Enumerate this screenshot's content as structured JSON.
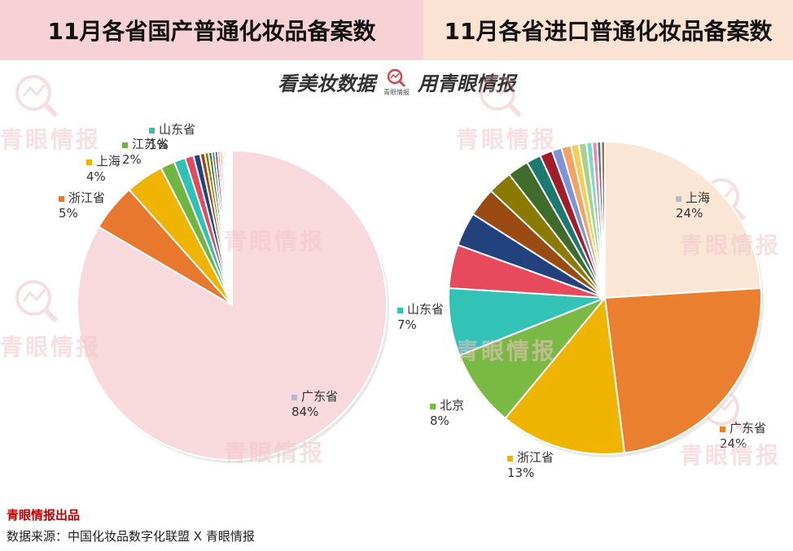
{
  "header": {
    "left_title": "11月各省国产普通化妆品备案数",
    "right_title": "11月各省进口普通化妆品备案数"
  },
  "brand": {
    "slogan_left": "看美妆数据",
    "logo_text": "青眼情报",
    "slogan_right": "用青眼情报",
    "watermark": "青眼情报"
  },
  "footer": {
    "brand": "青眼情报出品",
    "source": "数据来源：中国化妆品数字化联盟 X 青眼情报"
  },
  "chart_data": [
    {
      "type": "pie",
      "title": "11月各省国产普通化妆品备案数",
      "start_angle_deg": 0,
      "slices": [
        {
          "name": "广东省",
          "value": 84,
          "label": "84%",
          "color": "#f8d9dd",
          "labeled": true
        },
        {
          "name": "浙江省",
          "value": 5,
          "label": "5%",
          "color": "#e9782f",
          "labeled": true
        },
        {
          "name": "上海",
          "value": 4,
          "label": "4%",
          "color": "#efb400",
          "labeled": true
        },
        {
          "name": "江苏省",
          "value": 1.5,
          "label": "2%",
          "color": "#70b441",
          "labeled": true
        },
        {
          "name": "山东省",
          "value": 1.2,
          "label": "1%",
          "color": "#2fc1b5",
          "labeled": true
        },
        {
          "name": "",
          "value": 0.9,
          "color": "#e34a5d",
          "labeled": false
        },
        {
          "name": "",
          "value": 0.7,
          "color": "#22427e",
          "labeled": false
        },
        {
          "name": "",
          "value": 0.5,
          "color": "#9b4a12",
          "labeled": false
        },
        {
          "name": "",
          "value": 0.4,
          "color": "#8a7a00",
          "labeled": false
        },
        {
          "name": "",
          "value": 0.35,
          "color": "#3f6b2b",
          "labeled": false
        },
        {
          "name": "",
          "value": 0.3,
          "color": "#1b7a70",
          "labeled": false
        },
        {
          "name": "",
          "value": 0.3,
          "color": "#a31c2c",
          "labeled": false
        },
        {
          "name": "",
          "value": 0.25,
          "color": "#7f93d6",
          "labeled": false
        },
        {
          "name": "",
          "value": 0.25,
          "color": "#f4a360",
          "labeled": false
        },
        {
          "name": "",
          "value": 0.2,
          "color": "#f6cc52",
          "labeled": false
        },
        {
          "name": "",
          "value": 0.2,
          "color": "#a8d18c",
          "labeled": false
        },
        {
          "name": "",
          "value": 0.15,
          "color": "#7ad8cf",
          "labeled": false
        },
        {
          "name": "",
          "value": 0.15,
          "color": "#f08895",
          "labeled": false
        },
        {
          "name": "",
          "value": 0.15,
          "color": "#4b6fb5",
          "labeled": false
        },
        {
          "name": "",
          "value": 0.15,
          "color": "#c06a2b",
          "labeled": false
        }
      ]
    },
    {
      "type": "pie",
      "title": "11月各省进口普通化妆品备案数",
      "start_angle_deg": 0,
      "slices": [
        {
          "name": "上海",
          "value": 24,
          "label": "24%",
          "color": "#fbe6d6",
          "labeled": true
        },
        {
          "name": "广东省",
          "value": 24,
          "label": "24%",
          "color": "#ea7f2f",
          "labeled": true
        },
        {
          "name": "浙江省",
          "value": 13,
          "label": "13%",
          "color": "#efb400",
          "labeled": true
        },
        {
          "name": "北京",
          "value": 8,
          "label": "8%",
          "color": "#79b944",
          "labeled": true
        },
        {
          "name": "山东省",
          "value": 7,
          "label": "7%",
          "color": "#33c2b6",
          "labeled": true
        },
        {
          "name": "",
          "value": 4.5,
          "color": "#e64a5c",
          "labeled": false
        },
        {
          "name": "",
          "value": 3.5,
          "color": "#22427e",
          "labeled": false
        },
        {
          "name": "",
          "value": 3,
          "color": "#9b4a12",
          "labeled": false
        },
        {
          "name": "",
          "value": 2.5,
          "color": "#8a7a00",
          "labeled": false
        },
        {
          "name": "",
          "value": 2.2,
          "color": "#3f6b2b",
          "labeled": false
        },
        {
          "name": "",
          "value": 1.5,
          "color": "#1b7a70",
          "labeled": false
        },
        {
          "name": "",
          "value": 1.3,
          "color": "#a31c2c",
          "labeled": false
        },
        {
          "name": "",
          "value": 1,
          "color": "#7f93d6",
          "labeled": false
        },
        {
          "name": "",
          "value": 1,
          "color": "#f4a360",
          "labeled": false
        },
        {
          "name": "",
          "value": 0.8,
          "color": "#f6cc52",
          "labeled": false
        },
        {
          "name": "",
          "value": 0.8,
          "color": "#a8d18c",
          "labeled": false
        },
        {
          "name": "",
          "value": 0.6,
          "color": "#7ad8cf",
          "labeled": false
        },
        {
          "name": "",
          "value": 0.5,
          "color": "#f08895",
          "labeled": false
        },
        {
          "name": "",
          "value": 0.4,
          "color": "#4b6fb5",
          "labeled": false
        },
        {
          "name": "",
          "value": 0.4,
          "color": "#c06a2b",
          "labeled": false
        }
      ]
    }
  ]
}
